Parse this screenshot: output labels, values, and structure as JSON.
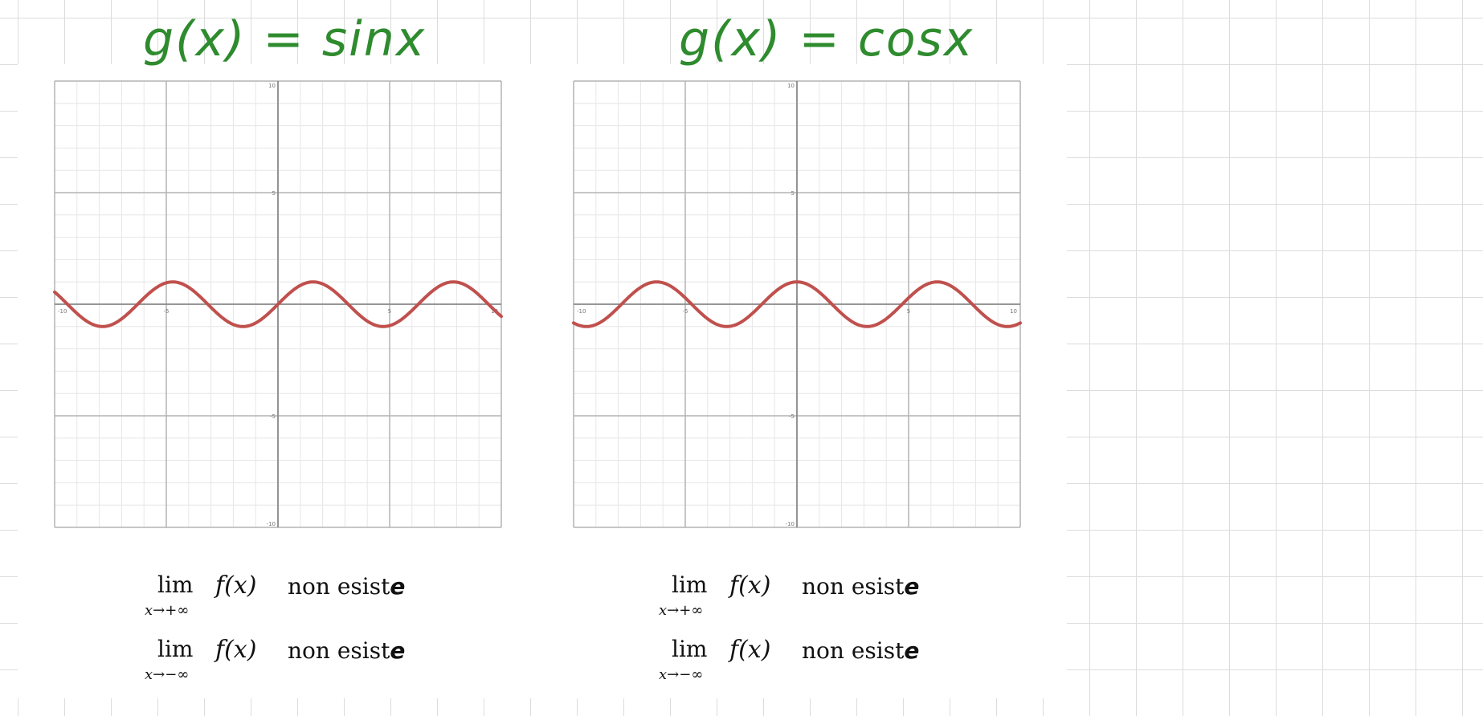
{
  "titles": {
    "left": "g(x) = sinx",
    "right": "g(x) = cosx"
  },
  "limits": {
    "left_pos": {
      "lim": "lim",
      "sub": "x→+∞",
      "func": "f(x)",
      "text": "non esist",
      "last": "e"
    },
    "left_neg": {
      "lim": "lim",
      "sub": "x→−∞",
      "func": "f(x)",
      "text": "non esist",
      "last": "e"
    },
    "right_pos": {
      "lim": "lim",
      "sub": "x→+∞",
      "func": "f(x)",
      "text": "non esist",
      "last": "e"
    },
    "right_neg": {
      "lim": "lim",
      "sub": "x→−∞",
      "func": "f(x)",
      "text": "non esist",
      "last": "e"
    }
  },
  "colors": {
    "title": "#2e8b2e",
    "curve": "#c0504d",
    "major_grid": "#b4b4b4",
    "minor_grid": "#e6e6e6",
    "axis": "#888888"
  },
  "chart_data": [
    {
      "type": "line",
      "function": "sin",
      "xlim": [
        -10,
        10
      ],
      "ylim": [
        -10,
        10
      ],
      "grid": true,
      "x_ticks": [
        -10,
        -5,
        5,
        10
      ],
      "y_ticks": [
        -10,
        -5,
        5,
        10
      ],
      "x_tick_labels": [
        "-10",
        "-5",
        "5",
        "10"
      ],
      "y_tick_labels": [
        "-10",
        "-5",
        "5",
        "10"
      ],
      "series": [
        {
          "function": "sin"
        }
      ]
    },
    {
      "type": "line",
      "function": "cos",
      "xlim": [
        -10,
        10
      ],
      "ylim": [
        -10,
        10
      ],
      "grid": true,
      "x_ticks": [
        -10,
        -5,
        5,
        10
      ],
      "y_ticks": [
        -10,
        -5,
        5,
        10
      ],
      "x_tick_labels": [
        "-10",
        "-5",
        "5",
        "10"
      ],
      "y_tick_labels": [
        "-10",
        "-5",
        "5",
        "10"
      ],
      "series": [
        {
          "function": "cos"
        }
      ]
    }
  ]
}
